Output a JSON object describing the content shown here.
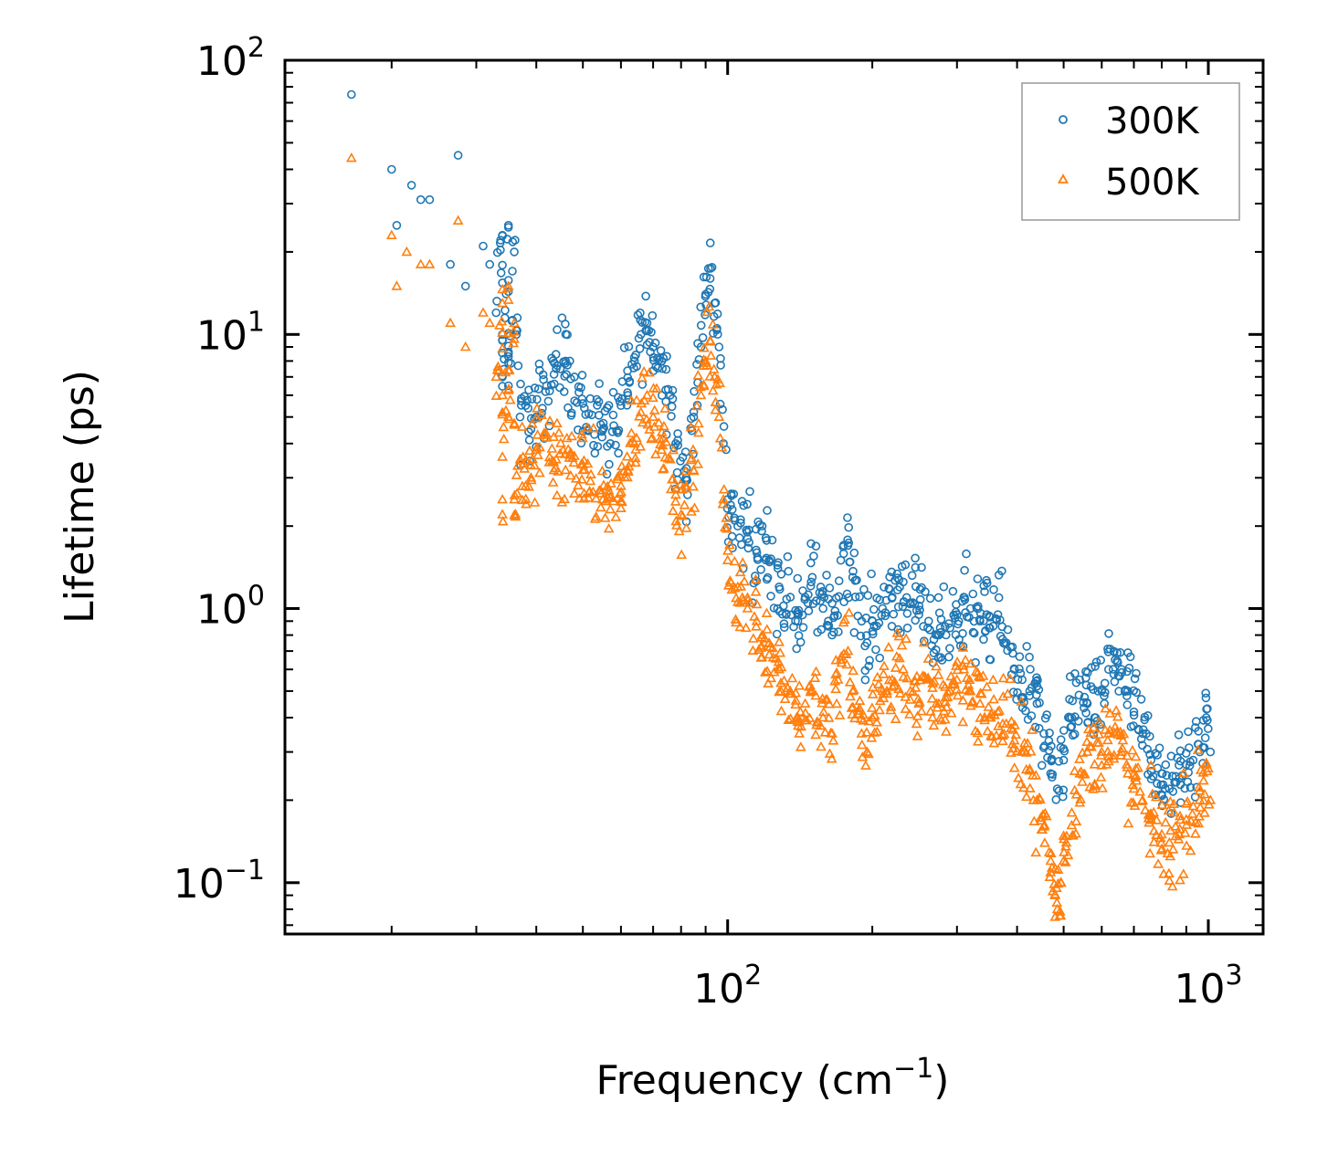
{
  "chart_data": {
    "type": "scatter",
    "xscale": "log",
    "yscale": "log",
    "xlim": [
      12,
      1300
    ],
    "ylim": [
      0.065,
      100
    ],
    "xlabel": "Frequency (cm",
    "xlabel_sup": "−1",
    "xlabel_end": ")",
    "ylabel": "Lifetime (ps)",
    "legend_position": "top-right",
    "x_ticks": [
      {
        "value": 100,
        "base": "10",
        "exp": "2"
      },
      {
        "value": 1000,
        "base": "10",
        "exp": "3"
      }
    ],
    "y_ticks": [
      {
        "value": 0.1,
        "base": "10",
        "exp": "−1"
      },
      {
        "value": 1,
        "base": "10",
        "exp": "0"
      },
      {
        "value": 10,
        "base": "10",
        "exp": "1"
      },
      {
        "value": 100,
        "base": "10",
        "exp": "2"
      }
    ],
    "series": [
      {
        "name": "300K",
        "marker": "circle",
        "color": "#1f77b4",
        "points": [
          [
            16.5,
            75
          ],
          [
            20,
            40
          ],
          [
            20.5,
            25
          ],
          [
            22,
            35
          ],
          [
            23,
            31
          ],
          [
            24,
            31
          ],
          [
            26.5,
            18
          ],
          [
            27.5,
            45
          ],
          [
            28.5,
            15
          ],
          [
            31,
            21
          ],
          [
            32,
            18
          ],
          [
            33,
            12
          ],
          [
            34,
            23
          ],
          [
            35,
            25
          ],
          [
            36,
            20
          ],
          [
            34,
            9.5
          ],
          [
            35,
            8.5
          ],
          [
            34,
            7
          ],
          [
            35,
            6.5
          ],
          [
            37,
            5
          ],
          [
            38,
            5.5
          ],
          [
            39,
            4.5
          ],
          [
            40,
            5
          ],
          [
            42,
            6.5
          ],
          [
            44,
            7.5
          ],
          [
            46,
            8
          ],
          [
            48,
            7
          ],
          [
            50,
            5.6
          ],
          [
            55,
            4.5
          ],
          [
            57,
            4
          ],
          [
            60,
            5.5
          ],
          [
            62,
            6
          ],
          [
            64,
            8
          ],
          [
            66,
            10
          ],
          [
            68,
            11
          ],
          [
            70,
            9
          ],
          [
            73,
            8
          ],
          [
            76,
            6
          ],
          [
            78,
            4
          ],
          [
            82,
            3
          ],
          [
            85,
            5
          ],
          [
            88,
            9
          ],
          [
            90,
            14
          ],
          [
            92,
            16
          ],
          [
            94,
            13
          ],
          [
            96,
            9
          ],
          [
            98,
            4
          ],
          [
            100,
            2.5
          ],
          [
            105,
            2
          ],
          [
            110,
            1.8
          ],
          [
            115,
            1.6
          ],
          [
            118,
            2
          ],
          [
            122,
            1.5
          ],
          [
            128,
            1.2
          ],
          [
            135,
            1.1
          ],
          [
            140,
            0.9
          ],
          [
            145,
            1.1
          ],
          [
            150,
            1.3
          ],
          [
            158,
            1
          ],
          [
            165,
            0.8
          ],
          [
            172,
            1.5
          ],
          [
            178,
            1.7
          ],
          [
            182,
            1.3
          ],
          [
            190,
            0.9
          ],
          [
            195,
            0.75
          ],
          [
            200,
            0.9
          ],
          [
            210,
            1
          ],
          [
            220,
            1.1
          ],
          [
            232,
            1.25
          ],
          [
            240,
            1.05
          ],
          [
            250,
            0.95
          ],
          [
            262,
            0.9
          ],
          [
            275,
            0.8
          ],
          [
            290,
            0.85
          ],
          [
            300,
            0.95
          ],
          [
            310,
            1.1
          ],
          [
            320,
            1
          ],
          [
            335,
            0.9
          ],
          [
            350,
            0.85
          ],
          [
            365,
            0.95
          ],
          [
            380,
            0.75
          ],
          [
            395,
            0.6
          ],
          [
            410,
            0.55
          ],
          [
            425,
            0.5
          ],
          [
            440,
            0.45
          ],
          [
            455,
            0.35
          ],
          [
            470,
            0.25
          ],
          [
            485,
            0.22
          ],
          [
            500,
            0.28
          ],
          [
            520,
            0.4
          ],
          [
            540,
            0.55
          ],
          [
            560,
            0.45
          ],
          [
            580,
            0.4
          ],
          [
            600,
            0.5
          ],
          [
            620,
            0.6
          ],
          [
            640,
            0.65
          ],
          [
            660,
            0.6
          ],
          [
            680,
            0.5
          ],
          [
            700,
            0.42
          ],
          [
            730,
            0.35
          ],
          [
            760,
            0.28
          ],
          [
            800,
            0.25
          ],
          [
            830,
            0.22
          ],
          [
            870,
            0.24
          ],
          [
            900,
            0.27
          ],
          [
            930,
            0.28
          ],
          [
            960,
            0.3
          ],
          [
            990,
            0.4
          ],
          [
            1010,
            0.3
          ]
        ]
      },
      {
        "name": "500K",
        "marker": "triangle",
        "color": "#ff7f0e",
        "points": [
          [
            16.5,
            44
          ],
          [
            20,
            23
          ],
          [
            20.5,
            15
          ],
          [
            21.5,
            20
          ],
          [
            23,
            18
          ],
          [
            24,
            18
          ],
          [
            26.5,
            11
          ],
          [
            27.5,
            26
          ],
          [
            28.5,
            9
          ],
          [
            31,
            12
          ],
          [
            32,
            11
          ],
          [
            33,
            7
          ],
          [
            34,
            13
          ],
          [
            35,
            15
          ],
          [
            36,
            11
          ],
          [
            34,
            6
          ],
          [
            35,
            5
          ],
          [
            34,
            2.5
          ],
          [
            36,
            2.5
          ],
          [
            37,
            3.5
          ],
          [
            38,
            2.8
          ],
          [
            39,
            3
          ],
          [
            40,
            3.8
          ],
          [
            42,
            4.2
          ],
          [
            44,
            3.5
          ],
          [
            46,
            3.2
          ],
          [
            48,
            3.6
          ],
          [
            50,
            3.2
          ],
          [
            55,
            2.5
          ],
          [
            57,
            2.3
          ],
          [
            60,
            2.8
          ],
          [
            62,
            3.2
          ],
          [
            64,
            4
          ],
          [
            66,
            5.2
          ],
          [
            68,
            6
          ],
          [
            70,
            5
          ],
          [
            73,
            4.4
          ],
          [
            76,
            3.5
          ],
          [
            78,
            2.6
          ],
          [
            80,
            2.2
          ],
          [
            82,
            2.8
          ],
          [
            85,
            3.2
          ],
          [
            88,
            6
          ],
          [
            90,
            8
          ],
          [
            92,
            9.5
          ],
          [
            94,
            7
          ],
          [
            96,
            5
          ],
          [
            98,
            2.5
          ],
          [
            100,
            1.5
          ],
          [
            105,
            1.2
          ],
          [
            110,
            1
          ],
          [
            115,
            0.9
          ],
          [
            118,
            0.8
          ],
          [
            122,
            0.75
          ],
          [
            128,
            0.6
          ],
          [
            135,
            0.5
          ],
          [
            140,
            0.4
          ],
          [
            145,
            0.45
          ],
          [
            150,
            0.5
          ],
          [
            158,
            0.4
          ],
          [
            165,
            0.35
          ],
          [
            172,
            0.65
          ],
          [
            178,
            0.7
          ],
          [
            182,
            0.5
          ],
          [
            190,
            0.35
          ],
          [
            195,
            0.3
          ],
          [
            200,
            0.4
          ],
          [
            210,
            0.5
          ],
          [
            220,
            0.55
          ],
          [
            232,
            0.6
          ],
          [
            240,
            0.5
          ],
          [
            250,
            0.45
          ],
          [
            262,
            0.55
          ],
          [
            275,
            0.45
          ],
          [
            290,
            0.5
          ],
          [
            300,
            0.55
          ],
          [
            310,
            0.6
          ],
          [
            320,
            0.5
          ],
          [
            335,
            0.45
          ],
          [
            350,
            0.4
          ],
          [
            365,
            0.42
          ],
          [
            380,
            0.38
          ],
          [
            395,
            0.33
          ],
          [
            410,
            0.3
          ],
          [
            425,
            0.26
          ],
          [
            440,
            0.2
          ],
          [
            455,
            0.16
          ],
          [
            470,
            0.12
          ],
          [
            480,
            0.09
          ],
          [
            485,
            0.08
          ],
          [
            500,
            0.12
          ],
          [
            520,
            0.18
          ],
          [
            540,
            0.25
          ],
          [
            560,
            0.3
          ],
          [
            580,
            0.27
          ],
          [
            600,
            0.3
          ],
          [
            620,
            0.35
          ],
          [
            640,
            0.37
          ],
          [
            660,
            0.3
          ],
          [
            680,
            0.25
          ],
          [
            700,
            0.22
          ],
          [
            730,
            0.2
          ],
          [
            760,
            0.17
          ],
          [
            800,
            0.15
          ],
          [
            830,
            0.14
          ],
          [
            870,
            0.15
          ],
          [
            900,
            0.17
          ],
          [
            930,
            0.19
          ],
          [
            960,
            0.2
          ],
          [
            990,
            0.27
          ],
          [
            1010,
            0.2
          ]
        ]
      }
    ]
  }
}
